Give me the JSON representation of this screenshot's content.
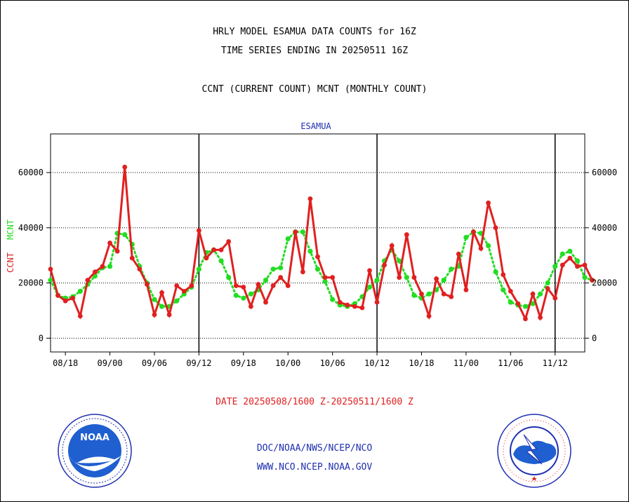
{
  "header": {
    "title": "HRLY MODEL ESAMUA DATA COUNTS for 16Z",
    "subtitle": "TIME SERIES ENDING IN 20250511 16Z",
    "series_caption": "CCNT (CURRENT COUNT) MCNT (MONTHLY COUNT)"
  },
  "footer": {
    "date_range": "DATE 20250508/1600 Z-20250511/1600 Z",
    "org": "DOC/NOAA/NWS/NCEP/NCO",
    "website": "WWW.NCO.NCEP.NOAA.GOV"
  },
  "logos": {
    "left": "noaa-logo",
    "right": "nws-logo",
    "left_text": "NOAA"
  },
  "colors": {
    "ccnt": "#e02020",
    "mcnt": "#22dd22",
    "plot_title": "#1f2fb0"
  },
  "chart_data": {
    "type": "line",
    "title": "ESAMUA",
    "ylabel_ccnt": "CCNT",
    "ylabel_mcnt": "MCNT",
    "ylim": [
      -5000,
      74000
    ],
    "yticks": [
      0,
      20000,
      40000,
      60000
    ],
    "ytick_labels": [
      "0",
      "20000",
      "40000",
      "60000"
    ],
    "xticks": [
      "08/18",
      "09/00",
      "09/06",
      "09/12",
      "09/18",
      "10/00",
      "10/06",
      "10/12",
      "10/18",
      "11/00",
      "11/06",
      "11/12"
    ],
    "xlim": [
      0,
      72
    ],
    "day_boundaries": [
      20,
      44,
      68
    ],
    "xtick_positions": [
      2,
      8,
      14,
      20,
      26,
      32,
      38,
      44,
      50,
      56,
      62,
      68
    ],
    "grid": "dotted-horizontal",
    "series": [
      {
        "name": "CCNT",
        "values": [
          25000,
          15500,
          13500,
          14500,
          8000,
          21000,
          24000,
          26000,
          34500,
          31500,
          62000,
          29000,
          25000,
          19500,
          8500,
          16500,
          8500,
          19000,
          17000,
          19000,
          39000,
          29000,
          32000,
          32000,
          35000,
          19000,
          18500,
          11500,
          19500,
          13000,
          19000,
          22000,
          19000,
          38500,
          24000,
          50500,
          29500,
          22000,
          22000,
          13000,
          12000,
          11500,
          11000,
          24500,
          13000,
          26500,
          33500,
          22000,
          37500,
          22000,
          16000,
          8000,
          21500,
          16000,
          15000,
          30500,
          17500,
          38500,
          32500,
          49000,
          40000,
          23000,
          17000,
          12500,
          7000,
          16000,
          7500,
          18000,
          14500,
          26500,
          29000,
          26000,
          26500,
          21000
        ]
      },
      {
        "name": "MCNT",
        "values": [
          21000,
          15500,
          14500,
          15000,
          17000,
          19500,
          22500,
          25500,
          26000,
          38000,
          37500,
          34000,
          26000,
          20000,
          14000,
          11500,
          11500,
          13500,
          16000,
          18500,
          25000,
          31000,
          32000,
          28000,
          22000,
          15500,
          14500,
          16000,
          17500,
          21000,
          25000,
          25500,
          36000,
          38500,
          38500,
          31500,
          25000,
          20500,
          14000,
          12000,
          11500,
          12500,
          15000,
          18500,
          21000,
          28000,
          32000,
          28000,
          22000,
          15500,
          14500,
          16000,
          17500,
          21000,
          25000,
          26000,
          36500,
          38500,
          38000,
          33500,
          24000,
          17500,
          13000,
          12000,
          11500,
          12500,
          16000,
          20000,
          26000,
          30500,
          31500,
          28000,
          22000,
          21000
        ]
      }
    ]
  }
}
